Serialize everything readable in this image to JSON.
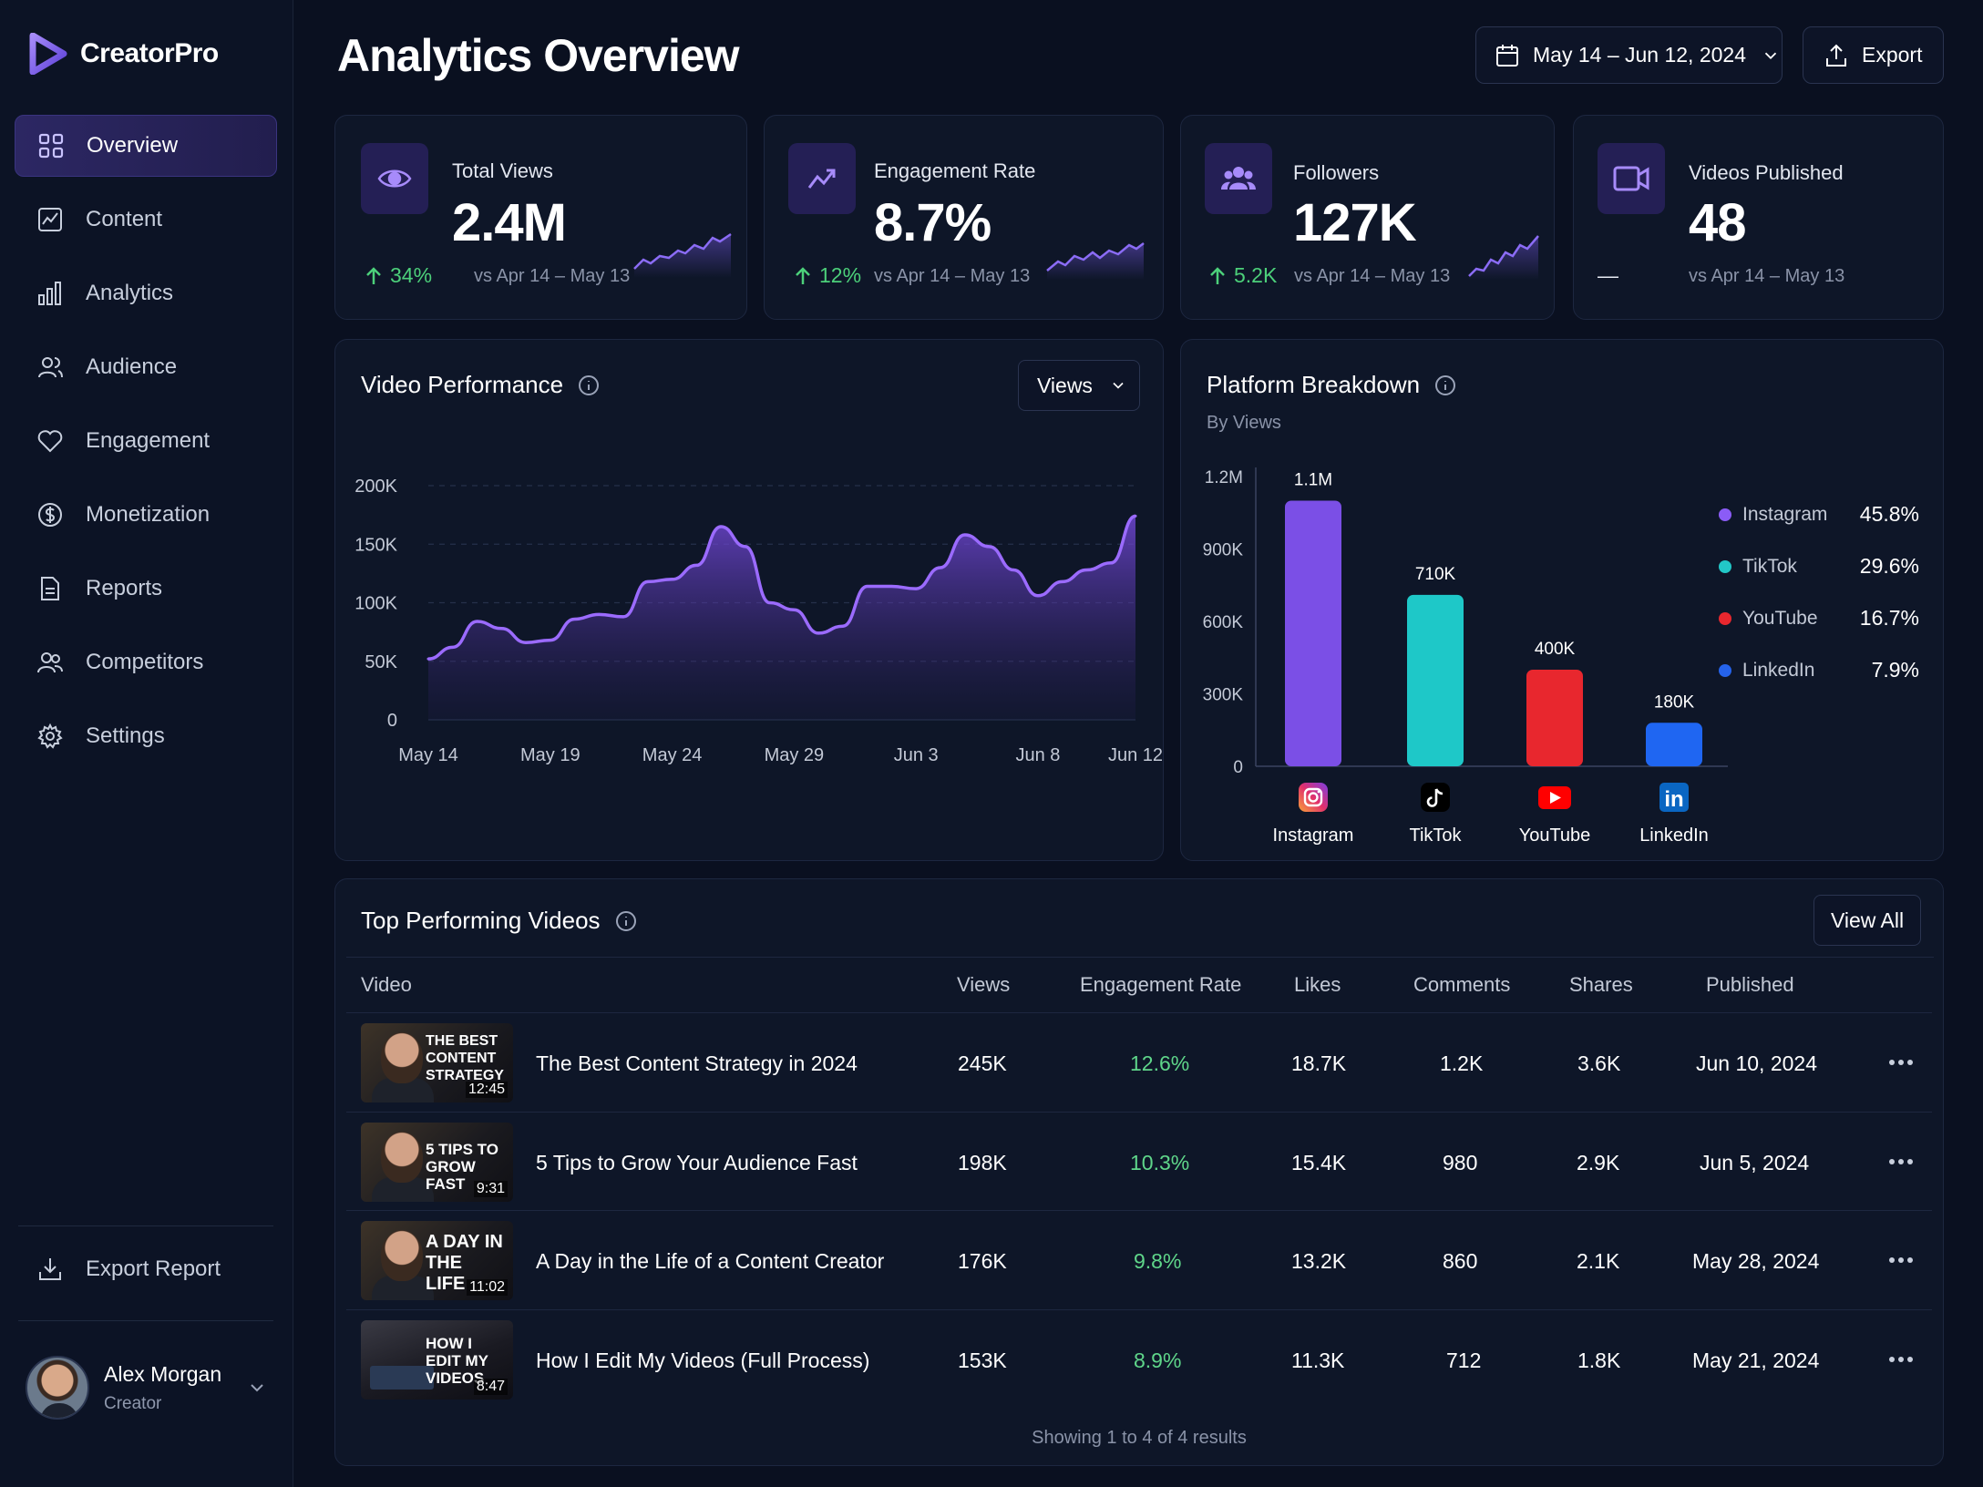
{
  "app": {
    "name": "CreatorPro"
  },
  "sidebar": {
    "items": [
      {
        "label": "Overview",
        "icon": "grid-icon",
        "active": true
      },
      {
        "label": "Content",
        "icon": "chart-image-icon"
      },
      {
        "label": "Analytics",
        "icon": "bar-chart-icon"
      },
      {
        "label": "Audience",
        "icon": "users-icon"
      },
      {
        "label": "Engagement",
        "icon": "heart-icon"
      },
      {
        "label": "Monetization",
        "icon": "dollar-icon"
      },
      {
        "label": "Reports",
        "icon": "document-icon"
      },
      {
        "label": "Competitors",
        "icon": "people-icon"
      },
      {
        "label": "Settings",
        "icon": "gear-icon"
      }
    ],
    "export_report": "Export Report",
    "user": {
      "name": "Alex Morgan",
      "role": "Creator"
    }
  },
  "header": {
    "title": "Analytics Overview",
    "date_range": "May 14 – Jun 12, 2024",
    "export_label": "Export"
  },
  "kpis": [
    {
      "label": "Total Views",
      "value": "2.4M",
      "delta": "34%",
      "vs": "vs Apr 14 – May 13",
      "icon": "eye-icon"
    },
    {
      "label": "Engagement Rate",
      "value": "8.7%",
      "delta": "12%",
      "vs": "vs Apr 14 – May 13",
      "icon": "trend-up-icon"
    },
    {
      "label": "Followers",
      "value": "127K",
      "delta": "5.2K",
      "vs": "vs Apr 14 – May 13",
      "icon": "followers-icon"
    },
    {
      "label": "Videos Published",
      "value": "48",
      "delta": "—",
      "vs": "vs Apr 14 – May 13",
      "icon": "video-camera-icon"
    }
  ],
  "video_performance": {
    "title": "Video Performance",
    "metric_select": "Views",
    "chart_data": {
      "type": "area",
      "x_ticks": [
        "May 14",
        "May 19",
        "May 24",
        "May 29",
        "Jun 3",
        "Jun 8",
        "Jun 12"
      ],
      "y_ticks": [
        "0",
        "50K",
        "100K",
        "150K",
        "200K"
      ],
      "ylim": [
        0,
        200000
      ],
      "points": [
        [
          "May 14",
          52000
        ],
        [
          "May 15",
          62000
        ],
        [
          "May 16",
          84000
        ],
        [
          "May 17",
          78000
        ],
        [
          "May 18",
          66000
        ],
        [
          "May 19",
          68000
        ],
        [
          "May 20",
          86000
        ],
        [
          "May 21",
          90000
        ],
        [
          "May 22",
          88000
        ],
        [
          "May 23",
          118000
        ],
        [
          "May 24",
          120000
        ],
        [
          "May 25",
          132000
        ],
        [
          "May 26",
          165000
        ],
        [
          "May 27",
          148000
        ],
        [
          "May 28",
          100000
        ],
        [
          "May 29",
          94000
        ],
        [
          "May 30",
          74000
        ],
        [
          "May 31",
          80000
        ],
        [
          "Jun 1",
          114000
        ],
        [
          "Jun 2",
          114000
        ],
        [
          "Jun 3",
          112000
        ],
        [
          "Jun 4",
          130000
        ],
        [
          "Jun 5",
          158000
        ],
        [
          "Jun 6",
          148000
        ],
        [
          "Jun 7",
          128000
        ],
        [
          "Jun 8",
          106000
        ],
        [
          "Jun 9",
          118000
        ],
        [
          "Jun 10",
          128000
        ],
        [
          "Jun 11",
          134000
        ],
        [
          "Jun 12",
          174000
        ]
      ]
    }
  },
  "platform_breakdown": {
    "title": "Platform Breakdown",
    "subtitle": "By Views",
    "chart_data": {
      "type": "bar",
      "categories": [
        "Instagram",
        "TikTok",
        "YouTube",
        "LinkedIn"
      ],
      "values": [
        1100000,
        710000,
        400000,
        180000
      ],
      "value_labels": [
        "1.1M",
        "710K",
        "400K",
        "180K"
      ],
      "colors": [
        "#7b4fe6",
        "#1ec8c8",
        "#e8272e",
        "#1f66f2"
      ],
      "y_ticks": [
        "0",
        "300K",
        "600K",
        "900K",
        "1.2M"
      ],
      "ylim": [
        0,
        1200000
      ],
      "legend": [
        {
          "name": "Instagram",
          "pct": "45.8%",
          "color": "#8b5cf6"
        },
        {
          "name": "TikTok",
          "pct": "29.6%",
          "color": "#22c7c7"
        },
        {
          "name": "YouTube",
          "pct": "16.7%",
          "color": "#e8272e"
        },
        {
          "name": "LinkedIn",
          "pct": "7.9%",
          "color": "#2563eb"
        }
      ]
    }
  },
  "top_videos": {
    "title": "Top Performing Videos",
    "view_all": "View All",
    "columns": [
      "Video",
      "Views",
      "Engagement Rate",
      "Likes",
      "Comments",
      "Shares",
      "Published"
    ],
    "rows": [
      {
        "thumb_text": "THE BEST CONTENT STRATEGY",
        "duration": "12:45",
        "title": "The Best Content Strategy in 2024",
        "views": "245K",
        "engagement": "12.6%",
        "likes": "18.7K",
        "comments": "1.2K",
        "shares": "3.6K",
        "published": "Jun 10, 2024"
      },
      {
        "thumb_text": "5 TIPS TO GROW FAST",
        "duration": "9:31",
        "title": "5 Tips to Grow Your Audience Fast",
        "views": "198K",
        "engagement": "10.3%",
        "likes": "15.4K",
        "comments": "980",
        "shares": "2.9K",
        "published": "Jun 5, 2024"
      },
      {
        "thumb_text": "A DAY IN THE LIFE",
        "duration": "11:02",
        "title": "A Day in the Life of a Content Creator",
        "views": "176K",
        "engagement": "9.8%",
        "likes": "13.2K",
        "comments": "860",
        "shares": "2.1K",
        "published": "May 28, 2024"
      },
      {
        "thumb_text": "HOW I EDIT MY VIDEOS",
        "duration": "8:47",
        "title": "How I Edit My Videos (Full Process)",
        "views": "153K",
        "engagement": "8.9%",
        "likes": "11.3K",
        "comments": "712",
        "shares": "1.8K",
        "published": "May 21, 2024"
      }
    ],
    "footer": "Showing 1 to 4 of 4 results"
  }
}
